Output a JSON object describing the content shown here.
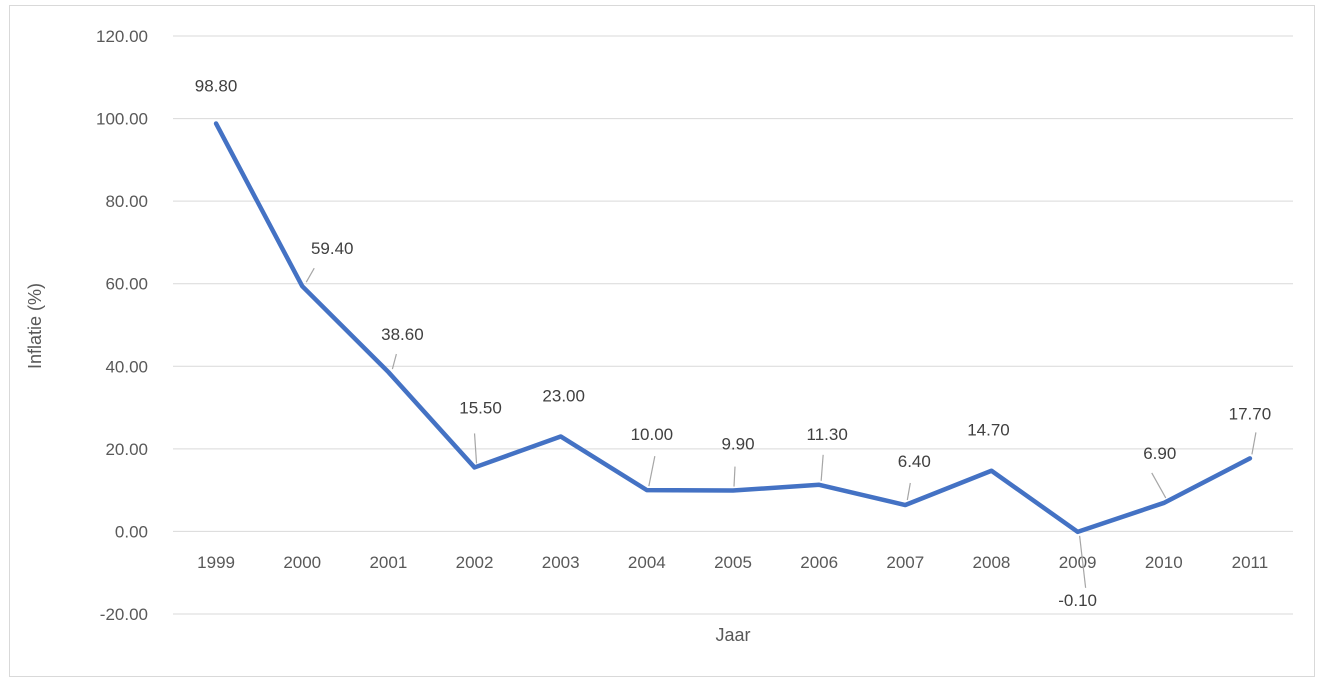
{
  "chart_data": {
    "type": "line",
    "title": "",
    "xlabel": "Jaar",
    "ylabel": "Inflatie (%)",
    "ylim": [
      -20,
      120
    ],
    "ytick_step": 20,
    "ytick_labels": [
      "-20.00",
      "0.00",
      "20.00",
      "40.00",
      "60.00",
      "80.00",
      "100.00",
      "120.00"
    ],
    "categories": [
      "1999",
      "2000",
      "2001",
      "2002",
      "2003",
      "2004",
      "2005",
      "2006",
      "2007",
      "2008",
      "2009",
      "2010",
      "2011"
    ],
    "series": [
      {
        "color": "#4472c4",
        "values": [
          98.8,
          59.4,
          38.6,
          15.5,
          23.0,
          10.0,
          9.9,
          11.3,
          6.4,
          14.7,
          -0.1,
          6.9,
          17.7
        ],
        "data_labels": [
          "98.80",
          "59.40",
          "38.60",
          "15.50",
          "23.00",
          "10.00",
          "9.90",
          "11.30",
          "6.40",
          "14.70",
          "-0.10",
          "6.90",
          "17.70"
        ]
      }
    ],
    "grid": true,
    "gridline_color": "#d9d9d9",
    "legend": "none"
  }
}
